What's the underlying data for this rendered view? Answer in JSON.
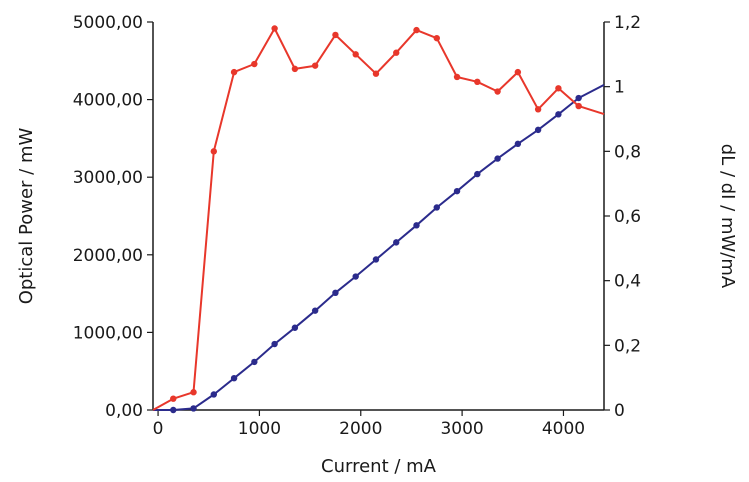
{
  "chart_data": {
    "type": "line",
    "xlabel": "Current / mA",
    "ylabel_left": "Optical Power / mW",
    "ylabel_right": "dL / dI / mW/mA",
    "xlim": [
      -50,
      4400
    ],
    "ylim_left": [
      0,
      5000
    ],
    "ylim_right": [
      0,
      1.2
    ],
    "x_ticks": [
      0,
      1000,
      2000,
      3000,
      4000
    ],
    "x_tick_labels": [
      "0",
      "1000",
      "2000",
      "3000",
      "4000"
    ],
    "y_left_ticks": [
      0,
      1000,
      2000,
      3000,
      4000,
      5000
    ],
    "y_left_tick_labels": [
      "0,00",
      "1000,00",
      "2000,00",
      "3000,00",
      "4000,00",
      "5000,00"
    ],
    "y_right_ticks": [
      0,
      0.2,
      0.4,
      0.6,
      0.8,
      1.0,
      1.2
    ],
    "y_right_tick_labels": [
      "0",
      "0,2",
      "0,4",
      "0,6",
      "0,8",
      "1",
      "1,2"
    ],
    "grid": false,
    "series": [
      {
        "name": "",
        "axis": "left",
        "color": "#2b2b8c",
        "x": [
          -50,
          150,
          350,
          550,
          750,
          950,
          1150,
          1350,
          1550,
          1750,
          1950,
          2150,
          2350,
          2550,
          2750,
          2950,
          3150,
          3350,
          3550,
          3750,
          3950,
          4150,
          4400
        ],
        "y": [
          0,
          0,
          20,
          200,
          410,
          620,
          850,
          1060,
          1280,
          1510,
          1720,
          1940,
          2160,
          2380,
          2610,
          2820,
          3040,
          3240,
          3430,
          3610,
          3810,
          4020,
          4190
        ],
        "markers": [
          false,
          true,
          true,
          true,
          true,
          true,
          true,
          true,
          true,
          true,
          true,
          true,
          true,
          true,
          true,
          true,
          true,
          true,
          true,
          true,
          true,
          true,
          false
        ]
      },
      {
        "name": "",
        "axis": "right",
        "color": "#e8372b",
        "x": [
          -50,
          150,
          350,
          550,
          750,
          950,
          1150,
          1350,
          1550,
          1750,
          1950,
          2150,
          2350,
          2550,
          2750,
          2950,
          3150,
          3350,
          3550,
          3750,
          3950,
          4150,
          4400
        ],
        "y": [
          0,
          0.035,
          0.055,
          0.8,
          1.045,
          1.07,
          1.18,
          1.055,
          1.065,
          1.16,
          1.1,
          1.04,
          1.105,
          1.175,
          1.15,
          1.03,
          1.015,
          0.985,
          1.045,
          0.93,
          0.995,
          0.94,
          0.915
        ],
        "markers": [
          false,
          true,
          true,
          true,
          true,
          true,
          true,
          true,
          true,
          true,
          true,
          true,
          true,
          true,
          true,
          true,
          true,
          true,
          true,
          true,
          true,
          true,
          false
        ]
      }
    ]
  }
}
